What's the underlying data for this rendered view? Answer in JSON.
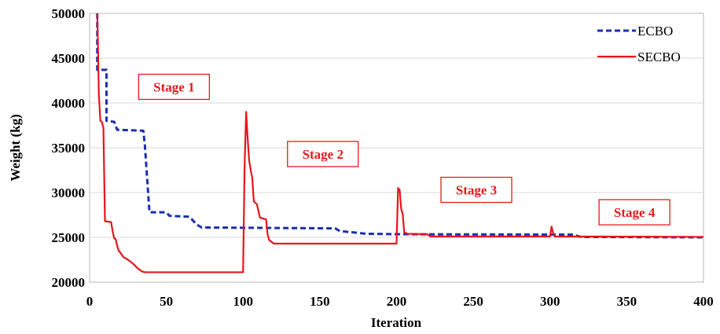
{
  "chart_data": {
    "type": "line",
    "title": "",
    "xlabel": "Iteration",
    "ylabel": "Weight (kg)",
    "xlim": [
      0,
      400
    ],
    "ylim": [
      20000,
      50000
    ],
    "xticks": [
      0,
      50,
      100,
      150,
      200,
      250,
      300,
      350,
      400
    ],
    "yticks": [
      20000,
      25000,
      30000,
      35000,
      40000,
      45000,
      50000
    ],
    "legend_position": "top-right",
    "series": [
      {
        "name": "ECBO",
        "color": "#1a2fb0",
        "style": "dashed",
        "points": [
          [
            5,
            50000
          ],
          [
            5,
            43700
          ],
          [
            11,
            43700
          ],
          [
            11,
            38000
          ],
          [
            16,
            37900
          ],
          [
            18,
            37000
          ],
          [
            35,
            36900
          ],
          [
            36,
            35300
          ],
          [
            38,
            30300
          ],
          [
            39,
            27800
          ],
          [
            50,
            27800
          ],
          [
            52,
            27400
          ],
          [
            65,
            27300
          ],
          [
            70,
            26400
          ],
          [
            73,
            26100
          ],
          [
            160,
            26000
          ],
          [
            163,
            25700
          ],
          [
            175,
            25500
          ],
          [
            180,
            25400
          ],
          [
            200,
            25350
          ],
          [
            315,
            25300
          ],
          [
            320,
            25050
          ],
          [
            400,
            25000
          ]
        ]
      },
      {
        "name": "SECBO",
        "color": "#e8141c",
        "style": "solid",
        "points": [
          [
            5,
            50000
          ],
          [
            5.5,
            46000
          ],
          [
            6,
            41000
          ],
          [
            7,
            38000
          ],
          [
            8,
            37900
          ],
          [
            9,
            37200
          ],
          [
            10,
            26800
          ],
          [
            14,
            26700
          ],
          [
            15,
            25700
          ],
          [
            16,
            24900
          ],
          [
            17,
            24800
          ],
          [
            18,
            24000
          ],
          [
            19,
            23500
          ],
          [
            20,
            23300
          ],
          [
            22,
            22800
          ],
          [
            25,
            22500
          ],
          [
            28,
            22100
          ],
          [
            31,
            21600
          ],
          [
            34,
            21200
          ],
          [
            36,
            21100
          ],
          [
            100,
            21100
          ],
          [
            101,
            33000
          ],
          [
            102,
            39000
          ],
          [
            103,
            36000
          ],
          [
            104,
            33500
          ],
          [
            105,
            32500
          ],
          [
            106,
            31600
          ],
          [
            107,
            29000
          ],
          [
            109,
            28700
          ],
          [
            111,
            27200
          ],
          [
            115,
            27000
          ],
          [
            116,
            25300
          ],
          [
            117,
            24700
          ],
          [
            120,
            24300
          ],
          [
            200,
            24300
          ],
          [
            201,
            30500
          ],
          [
            202,
            30300
          ],
          [
            203,
            28200
          ],
          [
            204,
            27600
          ],
          [
            205,
            25600
          ],
          [
            207,
            25400
          ],
          [
            220,
            25350
          ],
          [
            222,
            25100
          ],
          [
            298,
            25100
          ],
          [
            300,
            25100
          ],
          [
            301,
            26200
          ],
          [
            302,
            25500
          ],
          [
            303,
            25100
          ],
          [
            400,
            25050
          ]
        ]
      }
    ],
    "annotations": [
      {
        "text": "Stage 1",
        "x": 55,
        "y": 41800
      },
      {
        "text": "Stage 2",
        "x": 152,
        "y": 34300
      },
      {
        "text": "Stage 3",
        "x": 252,
        "y": 30300
      },
      {
        "text": "Stage 4",
        "x": 355,
        "y": 27800
      }
    ]
  }
}
